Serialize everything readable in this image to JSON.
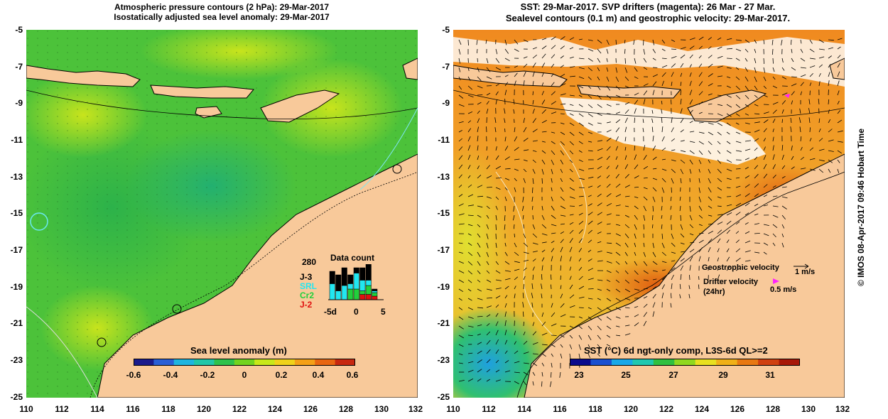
{
  "left_panel": {
    "title_line1": "Atmospheric pressure contours (2 hPa): 29-Mar-2017",
    "title_line2": "Isostatically adjusted sea level anomaly: 29-Mar-2017",
    "colorbar": {
      "label": "Sea level anomaly (m)",
      "ticks": [
        "-0.6",
        "-0.4",
        "-0.2",
        "0",
        "0.2",
        "0.4",
        "0.6"
      ],
      "colors": [
        "#1a1a8c",
        "#2a5fd6",
        "#1fb5e0",
        "#22c7a8",
        "#2ec24c",
        "#72d420",
        "#c8e81a",
        "#f0d21a",
        "#f4a018",
        "#e86612",
        "#c82810"
      ]
    },
    "data_count": {
      "title": "Data count",
      "max_label": "280",
      "satellites": [
        {
          "name": "J-3",
          "color": "#000000"
        },
        {
          "name": "SRL",
          "color": "#22e6f0"
        },
        {
          "name": "Cr2",
          "color": "#22d03c"
        },
        {
          "name": "J-2",
          "color": "#e01010"
        }
      ],
      "x_ticks": [
        "-5d",
        "0",
        "5"
      ],
      "bars": [
        {
          "j3": 0.35,
          "srl": 0.45,
          "cr2": 0.0,
          "j2": 0.0
        },
        {
          "j3": 0.45,
          "srl": 0.25,
          "cr2": 0.0,
          "j2": 0.0
        },
        {
          "j3": 0.5,
          "srl": 0.4,
          "cr2": 0.0,
          "j2": 0.0
        },
        {
          "j3": 0.25,
          "srl": 0.15,
          "cr2": 0.3,
          "j2": 0.0
        },
        {
          "j3": 0.15,
          "srl": 0.45,
          "cr2": 0.3,
          "j2": 0.0
        },
        {
          "j3": 0.35,
          "srl": 0.3,
          "cr2": 0.1,
          "j2": 0.15
        },
        {
          "j3": 0.5,
          "srl": 0.15,
          "cr2": 0.25,
          "j2": 0.15
        },
        {
          "j3": 0.05,
          "srl": 0.05,
          "cr2": 0.1,
          "j2": 0.1
        }
      ]
    }
  },
  "right_panel": {
    "title_line1": "SST: 29-Mar-2017. SVP drifters (magenta): 26 Mar - 27 Mar.",
    "title_line2": "Sealevel contours (0.1 m) and geostrophic velocity: 29-Mar-2017.",
    "colorbar": {
      "label": "SST (°C) 6d ngt-only comp, L3S-6d QL>=2",
      "ticks": [
        "23",
        "25",
        "27",
        "29",
        "31"
      ],
      "colors": [
        "#0a0a8c",
        "#1a50d0",
        "#18a8e8",
        "#20c8b0",
        "#30c040",
        "#90d820",
        "#e8e020",
        "#f0b018",
        "#e87812",
        "#d04010",
        "#a81808"
      ]
    },
    "legend": {
      "geostrophic_label": "Geostrophic velocity",
      "geostrophic_scale": "1 m/s",
      "drifter_label": "Drifter velocity",
      "drifter_sub": "(24hr)",
      "drifter_scale": "0.5 m/s",
      "drifter_color": "#ff22ff"
    },
    "side_stamp": "© IMOS 08-Apr-2017 09:46 Hobart Time"
  },
  "axes": {
    "y_ticks": [
      "-5",
      "-7",
      "-9",
      "-11",
      "-13",
      "-15",
      "-17",
      "-19",
      "-21",
      "-23",
      "-25"
    ],
    "x_ticks": [
      "110",
      "112",
      "114",
      "116",
      "118",
      "120",
      "122",
      "124",
      "126",
      "128",
      "130",
      "132"
    ]
  },
  "colors": {
    "land": "#f8c99a",
    "coast": "#000000",
    "sla_green": "#3ec23a",
    "sla_light": "#8fd830",
    "sst_orange": "#f0a02a",
    "cloud": "#ffffff"
  }
}
